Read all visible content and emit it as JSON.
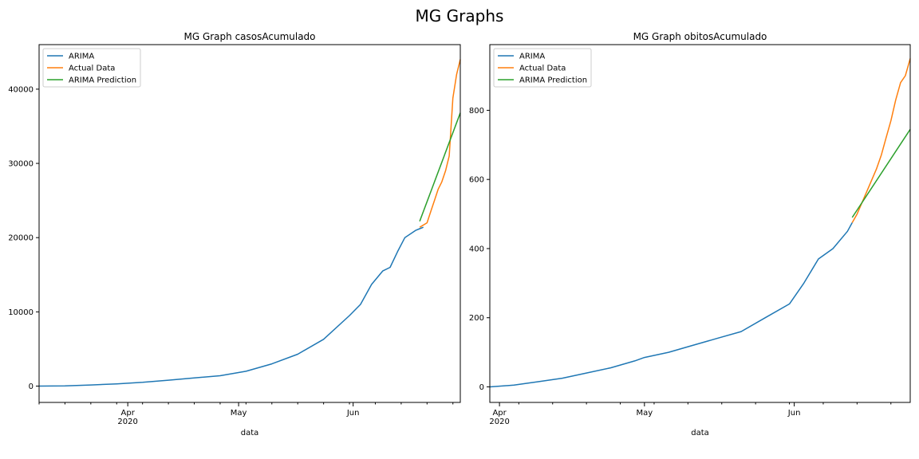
{
  "suptitle": "MG Graphs",
  "colors": {
    "arima": "#1f77b4",
    "actual": "#ff7f0e",
    "prediction": "#2ca02c"
  },
  "chart_data": [
    {
      "type": "line",
      "title": "MG Graph casosAcumulado",
      "xlabel": "data",
      "ylabel": "",
      "xlim": [
        "2020-03-08",
        "2020-06-30"
      ],
      "ylim": [
        -2200,
        46000
      ],
      "yticks": [
        0,
        10000,
        20000,
        30000,
        40000
      ],
      "xticks_major": [
        {
          "date": "2020-04-01",
          "label": "Apr",
          "sublabel": "2020"
        },
        {
          "date": "2020-05-01",
          "label": "May",
          "sublabel": ""
        },
        {
          "date": "2020-06-01",
          "label": "Jun",
          "sublabel": ""
        }
      ],
      "legend": {
        "placement": "upper-left",
        "entries": [
          "ARIMA",
          "Actual Data",
          "ARIMA Prediction"
        ]
      },
      "series": [
        {
          "name": "ARIMA",
          "color_key": "arima",
          "x": [
            "2020-03-08",
            "2020-03-15",
            "2020-03-22",
            "2020-03-29",
            "2020-04-05",
            "2020-04-12",
            "2020-04-19",
            "2020-04-26",
            "2020-05-03",
            "2020-05-10",
            "2020-05-17",
            "2020-05-24",
            "2020-05-31",
            "2020-06-03",
            "2020-06-06",
            "2020-06-09",
            "2020-06-11",
            "2020-06-13",
            "2020-06-15",
            "2020-06-18",
            "2020-06-19",
            "2020-06-20"
          ],
          "y": [
            0,
            20,
            150,
            300,
            500,
            800,
            1100,
            1400,
            2000,
            3000,
            4300,
            6300,
            9500,
            11000,
            13700,
            15500,
            16000,
            18100,
            20000,
            21000,
            21200,
            21400
          ]
        },
        {
          "name": "Actual Data",
          "color_key": "actual",
          "x": [
            "2020-06-19",
            "2020-06-21",
            "2020-06-22",
            "2020-06-23",
            "2020-06-24",
            "2020-06-25",
            "2020-06-26",
            "2020-06-27",
            "2020-06-28",
            "2020-06-29",
            "2020-06-30"
          ],
          "y": [
            21400,
            22000,
            23500,
            25000,
            26500,
            27500,
            29000,
            31000,
            38800,
            42000,
            44000
          ]
        },
        {
          "name": "ARIMA Prediction",
          "color_key": "prediction",
          "x": [
            "2020-06-19",
            "2020-06-30"
          ],
          "y": [
            22200,
            36800
          ]
        }
      ]
    },
    {
      "type": "line",
      "title": "MG Graph obitosAcumulado",
      "xlabel": "data",
      "ylabel": "",
      "xlim": [
        "2020-03-30",
        "2020-06-25"
      ],
      "ylim": [
        -45,
        990
      ],
      "yticks": [
        0,
        200,
        400,
        600,
        800
      ],
      "xticks_major": [
        {
          "date": "2020-04-01",
          "label": "Apr",
          "sublabel": "2020"
        },
        {
          "date": "2020-05-01",
          "label": "May",
          "sublabel": ""
        },
        {
          "date": "2020-06-01",
          "label": "Jun",
          "sublabel": ""
        }
      ],
      "legend": {
        "placement": "upper-left",
        "entries": [
          "ARIMA",
          "Actual Data",
          "ARIMA Prediction"
        ]
      },
      "series": [
        {
          "name": "ARIMA",
          "color_key": "arima",
          "x": [
            "2020-03-30",
            "2020-04-04",
            "2020-04-09",
            "2020-04-14",
            "2020-04-19",
            "2020-04-24",
            "2020-04-29",
            "2020-05-01",
            "2020-05-06",
            "2020-05-11",
            "2020-05-16",
            "2020-05-21",
            "2020-05-26",
            "2020-05-31",
            "2020-06-03",
            "2020-06-06",
            "2020-06-09",
            "2020-06-12",
            "2020-06-13"
          ],
          "y": [
            0,
            5,
            15,
            25,
            40,
            55,
            75,
            85,
            100,
            120,
            140,
            160,
            200,
            240,
            300,
            370,
            400,
            450,
            475
          ]
        },
        {
          "name": "Actual Data",
          "color_key": "actual",
          "x": [
            "2020-06-13",
            "2020-06-14",
            "2020-06-16",
            "2020-06-18",
            "2020-06-19",
            "2020-06-20",
            "2020-06-21",
            "2020-06-22",
            "2020-06-23",
            "2020-06-24",
            "2020-06-25"
          ],
          "y": [
            475,
            500,
            565,
            630,
            670,
            720,
            770,
            830,
            880,
            900,
            950
          ]
        },
        {
          "name": "ARIMA Prediction",
          "color_key": "prediction",
          "x": [
            "2020-06-13",
            "2020-06-25"
          ],
          "y": [
            490,
            745
          ]
        }
      ]
    }
  ]
}
